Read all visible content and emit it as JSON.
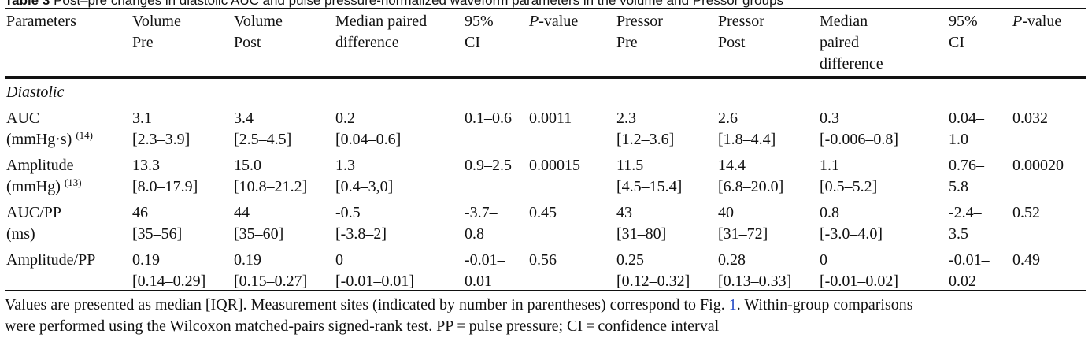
{
  "caption": {
    "label": "Table 3",
    "text": "Post–pre changes in diastolic AUC and pulse pressure-normalized waveform parameters in the volume and Pressor groups"
  },
  "headers": [
    [
      "Parameters"
    ],
    [
      "Volume",
      "Pre"
    ],
    [
      "Volume",
      "Post"
    ],
    [
      "Median paired",
      "difference"
    ],
    [
      "95%",
      "CI"
    ],
    [
      "P-value"
    ],
    [
      "Pressor",
      "Pre"
    ],
    [
      "Pressor",
      "Post"
    ],
    [
      "Median",
      "paired",
      "difference"
    ],
    [
      "95%",
      "CI"
    ],
    [
      "P-value"
    ]
  ],
  "section_label": "Diastolic",
  "rows": [
    {
      "param": [
        "AUC",
        "(mmHg·s)"
      ],
      "site": "(14)",
      "cells": [
        [
          "3.1",
          "[2.3–3.9]"
        ],
        [
          "3.4",
          "[2.5–4.5]"
        ],
        [
          "0.2",
          "[0.04–0.6]"
        ],
        [
          "0.1–0.6"
        ],
        [
          "0.0011"
        ],
        [
          "2.3",
          "[1.2–3.6]"
        ],
        [
          "2.6",
          "[1.8–4.4]"
        ],
        [
          "0.3",
          "[-0.006–0.8]"
        ],
        [
          "0.04–",
          "1.0"
        ],
        [
          "0.032"
        ]
      ]
    },
    {
      "param": [
        "Amplitude",
        "(mmHg)"
      ],
      "site": "(13)",
      "cells": [
        [
          "13.3",
          "[8.0–17.9]"
        ],
        [
          "15.0",
          "[10.8–21.2]"
        ],
        [
          "1.3",
          "[0.4–3,0]"
        ],
        [
          "0.9–2.5"
        ],
        [
          "0.00015"
        ],
        [
          "11.5",
          "[4.5–15.4]"
        ],
        [
          "14.4",
          "[6.8–20.0]"
        ],
        [
          "1.1",
          "[0.5–5.2]"
        ],
        [
          "0.76–",
          "5.8"
        ],
        [
          "0.00020"
        ]
      ]
    },
    {
      "param": [
        "AUC/PP",
        "(ms)"
      ],
      "site": "",
      "cells": [
        [
          "46",
          "[35–56]"
        ],
        [
          "44",
          "[35–60]"
        ],
        [
          "-0.5",
          "[-3.8–2]"
        ],
        [
          "-3.7–",
          "0.8"
        ],
        [
          "0.45"
        ],
        [
          "43",
          "[31–80]"
        ],
        [
          "40",
          "[31–72]"
        ],
        [
          "0.8",
          "[-3.0–4.0]"
        ],
        [
          "-2.4–",
          "3.5"
        ],
        [
          "0.52"
        ]
      ]
    },
    {
      "param": [
        "Amplitude/PP"
      ],
      "site": "",
      "cells": [
        [
          "0.19",
          "[0.14–0.29]"
        ],
        [
          "0.19",
          "[0.15–0.27]"
        ],
        [
          "0",
          "[-0.01–0.01]"
        ],
        [
          "-0.01–",
          "0.01"
        ],
        [
          "0.56"
        ],
        [
          "0.25",
          "[0.12–0.32]"
        ],
        [
          "0.28",
          "[0.13–0.33]"
        ],
        [
          "0",
          "[-0.01–0.02]"
        ],
        [
          "-0.01–",
          "0.02"
        ],
        [
          "0.49"
        ]
      ]
    }
  ],
  "footnote": {
    "line1_before": "Values are presented as median [IQR]. Measurement sites (indicated by number in parentheses) correspond to Fig. ",
    "fig_ref": "1",
    "line1_after": ". Within-group comparisons",
    "line2": "were performed using the Wilcoxon matched-pairs signed-rank test. PP = pulse pressure; CI = confidence interval"
  }
}
